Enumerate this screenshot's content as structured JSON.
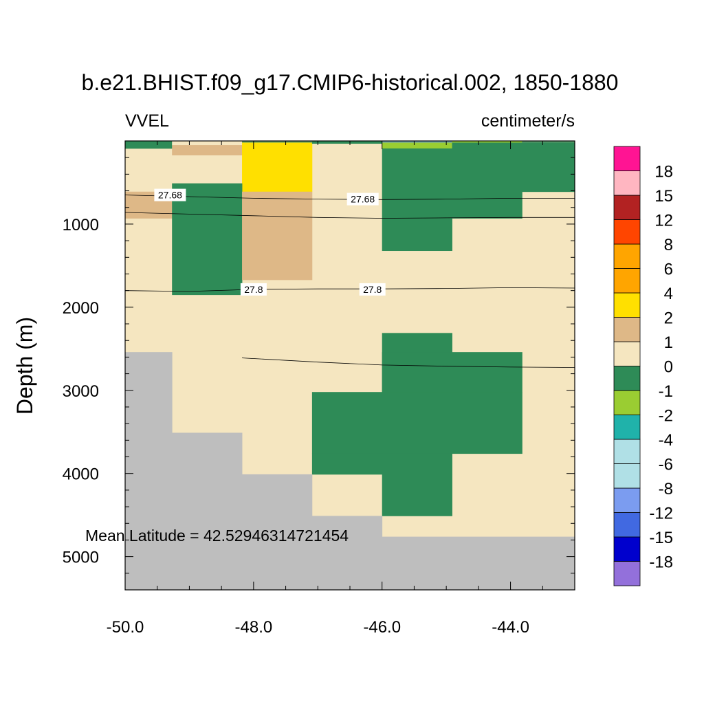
{
  "chart_data": {
    "type": "heatmap",
    "title": "b.e21.BHIST.f09_g17.CMIP6-historical.002, 1850-1880",
    "left_label": "VVEL",
    "right_label": "centimeter/s",
    "xlabel": "",
    "ylabel": "Depth (m)",
    "annotation": "Mean Latitude = 42.52946314721454",
    "xlim": [
      -50.0,
      -43.0
    ],
    "ylim": [
      0,
      5400
    ],
    "y_inverted": true,
    "x_ticks": [
      -50.0,
      -48.0,
      -46.0,
      -44.0
    ],
    "x_tick_labels": [
      "-50.0",
      "-48.0",
      "-46.0",
      "-44.0"
    ],
    "y_ticks": [
      1000,
      2000,
      3000,
      4000,
      5000
    ],
    "y_tick_labels": [
      "1000",
      "2000",
      "3000",
      "4000",
      "5000"
    ],
    "land_color": "#bebebe",
    "cells": [
      {
        "x0": -50.0,
        "x1": -43.0,
        "y0": 0,
        "y1": 5400,
        "color": "#f5e6c0"
      },
      {
        "x0": -50.0,
        "x1": -49.27,
        "y0": 0,
        "y1": 90,
        "color": "#2e8b57"
      },
      {
        "x0": -49.27,
        "x1": -48.18,
        "y0": 0,
        "y1": 50,
        "color": "#f5e6c0"
      },
      {
        "x0": -49.27,
        "x1": -48.18,
        "y0": 50,
        "y1": 170,
        "color": "#deb887"
      },
      {
        "x0": -48.18,
        "x1": -47.09,
        "y0": 0,
        "y1": 20,
        "color": "#5a9a6b"
      },
      {
        "x0": -48.18,
        "x1": -47.09,
        "y0": 20,
        "y1": 610,
        "color": "#ffe000"
      },
      {
        "x0": -47.09,
        "x1": -46.0,
        "y0": 0,
        "y1": 30,
        "color": "#2e8b57"
      },
      {
        "x0": -46.0,
        "x1": -44.91,
        "y0": 0,
        "y1": 20,
        "color": "#6ca0b5"
      },
      {
        "x0": -46.0,
        "x1": -44.91,
        "y0": 20,
        "y1": 90,
        "color": "#9acd32"
      },
      {
        "x0": -44.91,
        "x1": -43.82,
        "y0": 0,
        "y1": 20,
        "color": "#9acd32"
      },
      {
        "x0": -43.82,
        "x1": -43.0,
        "y0": 0,
        "y1": 20,
        "color": "#5a9a6b"
      },
      {
        "x0": -46.0,
        "x1": -43.82,
        "y0": 90,
        "y1": 930,
        "color": "#2e8b57"
      },
      {
        "x0": -44.91,
        "x1": -43.82,
        "y0": 20,
        "y1": 90,
        "color": "#2e8b57"
      },
      {
        "x0": -43.82,
        "x1": -43.0,
        "y0": 20,
        "y1": 610,
        "color": "#2e8b57"
      },
      {
        "x0": -46.0,
        "x1": -44.91,
        "y0": 930,
        "y1": 1320,
        "color": "#2e8b57"
      },
      {
        "x0": -50.0,
        "x1": -49.27,
        "y0": 610,
        "y1": 930,
        "color": "#deb887"
      },
      {
        "x0": -49.27,
        "x1": -48.18,
        "y0": 510,
        "y1": 1850,
        "color": "#2e8b57"
      },
      {
        "x0": -48.18,
        "x1": -47.09,
        "y0": 610,
        "y1": 1670,
        "color": "#deb887"
      },
      {
        "x0": -46.0,
        "x1": -44.91,
        "y0": 2310,
        "y1": 3020,
        "color": "#2e8b57"
      },
      {
        "x0": -46.0,
        "x1": -43.82,
        "y0": 2540,
        "y1": 3020,
        "color": "#2e8b57"
      },
      {
        "x0": -47.09,
        "x1": -43.82,
        "y0": 3020,
        "y1": 3760,
        "color": "#2e8b57"
      },
      {
        "x0": -47.09,
        "x1": -44.91,
        "y0": 3760,
        "y1": 4010,
        "color": "#2e8b57"
      },
      {
        "x0": -46.0,
        "x1": -44.91,
        "y0": 4010,
        "y1": 4510,
        "color": "#2e8b57"
      },
      {
        "x0": -50.0,
        "x1": -49.27,
        "y0": 2540,
        "y1": 5400,
        "color": "#bebebe"
      },
      {
        "x0": -49.27,
        "x1": -48.18,
        "y0": 3510,
        "y1": 5400,
        "color": "#bebebe"
      },
      {
        "x0": -48.18,
        "x1": -47.09,
        "y0": 4010,
        "y1": 5400,
        "color": "#bebebe"
      },
      {
        "x0": -47.09,
        "x1": -46.0,
        "y0": 4510,
        "y1": 5400,
        "color": "#bebebe"
      },
      {
        "x0": -46.0,
        "x1": -43.0,
        "y0": 4760,
        "y1": 5400,
        "color": "#bebebe"
      }
    ],
    "contours": [
      {
        "label": "27.68",
        "points": [
          [
            -50.0,
            650
          ],
          [
            -49.0,
            670
          ],
          [
            -48.0,
            690
          ],
          [
            -47.0,
            700
          ],
          [
            -46.0,
            705
          ],
          [
            -45.0,
            700
          ],
          [
            -44.0,
            690
          ],
          [
            -43.0,
            690
          ]
        ],
        "label_positions": [
          [
            -49.3,
            650
          ],
          [
            -46.3,
            700
          ]
        ]
      },
      {
        "label": "",
        "points": [
          [
            -50.0,
            860
          ],
          [
            -49.0,
            880
          ],
          [
            -48.0,
            900
          ],
          [
            -47.0,
            920
          ],
          [
            -46.0,
            930
          ],
          [
            -45.0,
            925
          ],
          [
            -44.0,
            920
          ],
          [
            -43.0,
            920
          ]
        ],
        "label_positions": []
      },
      {
        "label": "27.8",
        "points": [
          [
            -50.0,
            1800
          ],
          [
            -49.0,
            1810
          ],
          [
            -48.0,
            1785
          ],
          [
            -47.0,
            1780
          ],
          [
            -46.0,
            1780
          ],
          [
            -45.0,
            1775
          ],
          [
            -44.0,
            1765
          ],
          [
            -43.0,
            1770
          ]
        ],
        "label_positions": [
          [
            -48.0,
            1785
          ],
          [
            -46.15,
            1785
          ]
        ]
      },
      {
        "label": "",
        "points": [
          [
            -48.18,
            2610
          ],
          [
            -47.0,
            2660
          ],
          [
            -46.0,
            2695
          ],
          [
            -45.0,
            2710
          ],
          [
            -44.0,
            2720
          ],
          [
            -43.0,
            2725
          ]
        ],
        "label_positions": []
      }
    ],
    "colorbar": {
      "colors": [
        "#9370db",
        "#0000cd",
        "#4169e1",
        "#7b9cf0",
        "#b0e0e6",
        "#b0e0e6",
        "#20b2aa",
        "#9acd32",
        "#2e8b57",
        "#f5e6c0",
        "#deb887",
        "#ffe000",
        "#ffa500",
        "#ffa500",
        "#ff4500",
        "#b22222",
        "#ffb6c1",
        "#ff1493"
      ],
      "labels": [
        "-18",
        "-15",
        "-12",
        "-8",
        "-6",
        "-4",
        "-2",
        "-1",
        "0",
        "1",
        "2",
        "4",
        "6",
        "8",
        "12",
        "15",
        "18"
      ]
    }
  }
}
